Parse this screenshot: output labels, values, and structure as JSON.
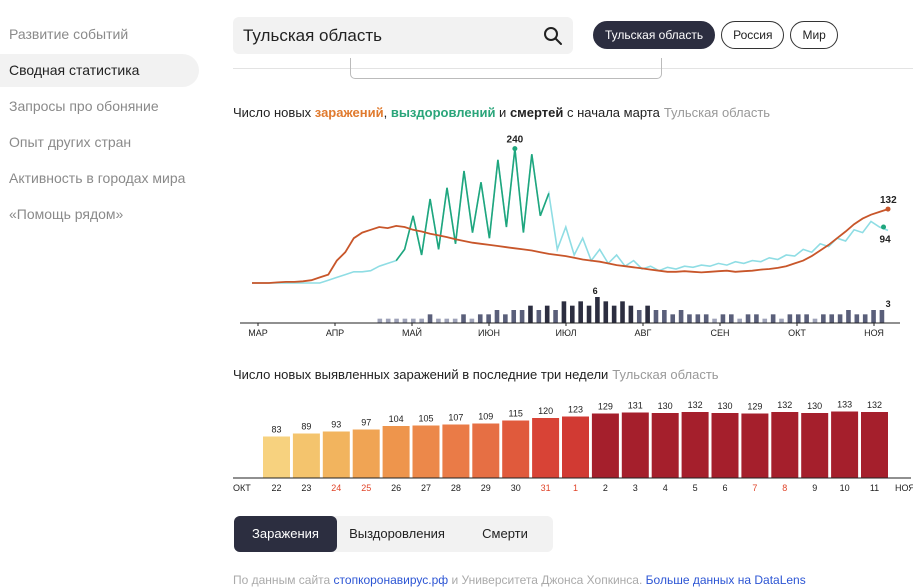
{
  "sidebar": {
    "items": [
      {
        "label": "Развитие событий",
        "active": false
      },
      {
        "label": "Сводная статистика",
        "active": true
      },
      {
        "label": "Запросы про обоняние",
        "active": false
      },
      {
        "label": "Опыт других стран",
        "active": false
      },
      {
        "label": "Активность в городах мира",
        "active": false
      },
      {
        "label": "«Помощь рядом»",
        "active": false
      }
    ]
  },
  "search": {
    "value": "Тульская область",
    "icon": "search-icon"
  },
  "chips": [
    {
      "label": "Тульская область",
      "active": true
    },
    {
      "label": "Россия",
      "active": false
    },
    {
      "label": "Мир",
      "active": false
    }
  ],
  "chart1_title": {
    "prefix": "Число новых ",
    "infections": "заражений",
    "sep1": ", ",
    "recoveries": "выздоровлений",
    "sep2": " и ",
    "deaths": "смертей",
    "suffix": " с начала марта",
    "region": "Тульская область"
  },
  "chart2_title": {
    "text": "Число новых выявленных заражений в последние три недели",
    "region": "Тульская область"
  },
  "tabs": [
    {
      "label": "Заражения",
      "active": true
    },
    {
      "label": "Выздоровления",
      "active": false
    },
    {
      "label": "Смерти",
      "active": false
    }
  ],
  "footer": {
    "text1": "По данным сайта ",
    "link1": "стопкоронавирус.рф",
    "text2": " и Университета Джонса Хопкинса. ",
    "link2": "Больше данных на DataLens"
  },
  "colors": {
    "infections": "#c8562a",
    "recoveries_light": "#8fdde4",
    "recoveries_dark": "#1fa67d",
    "deaths": "#4a4f6a",
    "accent": "#2c2e40"
  },
  "chart_data": [
    {
      "type": "line",
      "x_labels": [
        "МАР",
        "АПР",
        "МАЙ",
        "ИЮН",
        "ИЮЛ",
        "АВГ",
        "СЕН",
        "ОКТ",
        "НОЯ"
      ],
      "series": [
        {
          "name": "заражений",
          "color": "#c8562a",
          "values": [
            0,
            0,
            0,
            1,
            2,
            2,
            3,
            5,
            10,
            15,
            40,
            55,
            80,
            90,
            95,
            100,
            98,
            102,
            100,
            95,
            92,
            88,
            85,
            82,
            78,
            75,
            72,
            70,
            68,
            66,
            64,
            62,
            60,
            58,
            55,
            52,
            50,
            48,
            45,
            42,
            40,
            38,
            35,
            32,
            30,
            28,
            26,
            24,
            22,
            20,
            20,
            21,
            20,
            19,
            20,
            21,
            22,
            20,
            21,
            22,
            24,
            25,
            27,
            30,
            35,
            40,
            48,
            58,
            68,
            80,
            92,
            105,
            115,
            122,
            127,
            132
          ],
          "last_label": "132"
        },
        {
          "name": "выздоровлений",
          "color": "#8fdde4",
          "highlight_color": "#1fa67d",
          "values": [
            0,
            0,
            0,
            0,
            0,
            0,
            0,
            0,
            0,
            5,
            10,
            15,
            20,
            20,
            22,
            30,
            35,
            40,
            60,
            120,
            50,
            150,
            60,
            170,
            70,
            200,
            90,
            180,
            80,
            220,
            100,
            240,
            90,
            230,
            120,
            160,
            60,
            100,
            50,
            80,
            40,
            60,
            35,
            50,
            30,
            40,
            25,
            30,
            22,
            28,
            25,
            30,
            28,
            32,
            30,
            35,
            32,
            38,
            35,
            40,
            38,
            45,
            42,
            50,
            48,
            60,
            55,
            70,
            65,
            80,
            75,
            95,
            90,
            110,
            100,
            94
          ],
          "peak": 240,
          "last_label": "94"
        }
      ],
      "annotations": [
        "240",
        "132",
        "94"
      ]
    },
    {
      "type": "bar",
      "name": "смертей",
      "values": [
        0,
        0,
        0,
        0,
        0,
        0,
        0,
        0,
        0,
        0,
        0,
        0,
        0,
        0,
        0,
        1,
        1,
        1,
        1,
        1,
        1,
        2,
        1,
        1,
        1,
        2,
        1,
        2,
        2,
        3,
        2,
        3,
        3,
        4,
        3,
        4,
        3,
        5,
        4,
        5,
        4,
        6,
        5,
        4,
        5,
        4,
        3,
        4,
        3,
        3,
        2,
        3,
        2,
        2,
        2,
        1,
        2,
        2,
        1,
        2,
        2,
        1,
        2,
        1,
        2,
        2,
        2,
        1,
        2,
        2,
        2,
        3,
        2,
        2,
        3,
        3
      ],
      "peak": 6,
      "last_label": "3"
    },
    {
      "type": "bar",
      "categories": [
        "22",
        "23",
        "24",
        "25",
        "26",
        "27",
        "28",
        "29",
        "30",
        "31",
        "1",
        "2",
        "3",
        "4",
        "5",
        "6",
        "7",
        "8",
        "9",
        "10",
        "11"
      ],
      "values": [
        83,
        89,
        93,
        97,
        104,
        105,
        107,
        109,
        115,
        120,
        123,
        129,
        131,
        130,
        132,
        130,
        129,
        132,
        130,
        133,
        132
      ],
      "weekend": [
        "24",
        "25",
        "31",
        "1",
        "7",
        "8"
      ],
      "x_start": "ОКТ",
      "x_end": "НОЯ",
      "ylim": [
        0,
        140
      ]
    }
  ]
}
